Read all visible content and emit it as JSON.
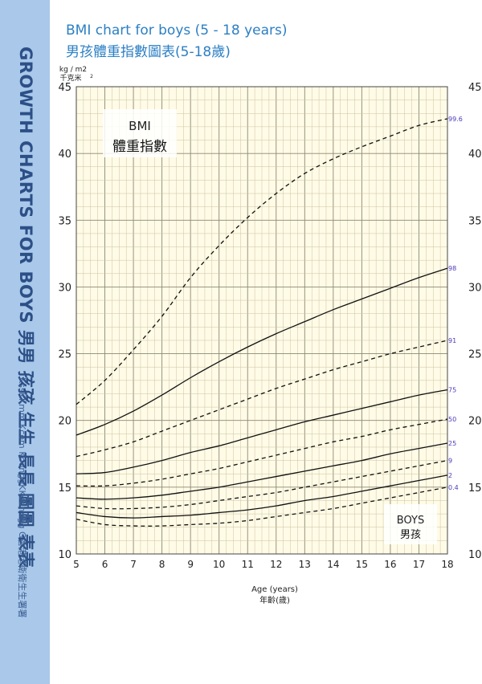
{
  "sidebar": {
    "title": "GROWTH CHARTS FOR BOYS 男男 孩孩 生生 長長 圖圖 表表",
    "subtitle": "KssKKmm.Kcom KoonggKKoonngg G香港港衛衛生生署署"
  },
  "header": {
    "title_en": "BMI chart for boys (5 - 18 years)",
    "title_zh": "男孩體重指數圖表(5-18歲)"
  },
  "chart_data": {
    "type": "line",
    "title": "BMI chart for boys (5 - 18 years)",
    "ylabel_unit": "kg / m2",
    "ylabel_unit_zh": "千克米",
    "ylabel_unit_sup": "2",
    "inner_label": "BMI",
    "inner_label_zh": "體重指數",
    "sex_label": "BOYS",
    "sex_label_zh": "男孩",
    "xlabel": "Age (years)",
    "xlabel_zh": "年齡(歲)",
    "xlim": [
      5,
      18
    ],
    "ylim": [
      10,
      45
    ],
    "x_ticks": [
      5,
      6,
      7,
      8,
      9,
      10,
      11,
      12,
      13,
      14,
      15,
      16,
      17,
      18
    ],
    "y_ticks": [
      10,
      15,
      20,
      25,
      30,
      35,
      40,
      45
    ],
    "grid": true,
    "colors": {
      "grid_bg": "#fffbe6",
      "grid_line": "#c9c3a4",
      "grid_major": "#8c8873",
      "curve": "#111111",
      "percentile_label": "#4a3ab8",
      "title": "#2b7fc4",
      "sidebar_bg": "#a9c8ea"
    },
    "x": [
      5,
      6,
      7,
      8,
      9,
      10,
      11,
      12,
      13,
      14,
      15,
      16,
      17,
      18
    ],
    "series": [
      {
        "name": "99.6",
        "dashed": true,
        "values": [
          21.2,
          23.0,
          25.3,
          27.8,
          30.7,
          33.1,
          35.2,
          37.0,
          38.5,
          39.6,
          40.5,
          41.3,
          42.1,
          42.6
        ]
      },
      {
        "name": "98",
        "dashed": false,
        "values": [
          18.9,
          19.7,
          20.7,
          21.9,
          23.2,
          24.4,
          25.5,
          26.5,
          27.4,
          28.3,
          29.1,
          29.9,
          30.7,
          31.4
        ]
      },
      {
        "name": "91",
        "dashed": true,
        "values": [
          17.3,
          17.8,
          18.4,
          19.2,
          20.0,
          20.8,
          21.6,
          22.4,
          23.1,
          23.8,
          24.4,
          25.0,
          25.5,
          26.0
        ]
      },
      {
        "name": "75",
        "dashed": false,
        "values": [
          16.0,
          16.1,
          16.5,
          17.0,
          17.6,
          18.1,
          18.7,
          19.3,
          19.9,
          20.4,
          20.9,
          21.4,
          21.9,
          22.3
        ]
      },
      {
        "name": "50",
        "dashed": true,
        "values": [
          15.1,
          15.1,
          15.3,
          15.6,
          16.0,
          16.4,
          16.9,
          17.4,
          17.9,
          18.4,
          18.8,
          19.3,
          19.7,
          20.1
        ]
      },
      {
        "name": "25",
        "dashed": false,
        "values": [
          14.2,
          14.1,
          14.2,
          14.4,
          14.7,
          15.0,
          15.4,
          15.8,
          16.2,
          16.6,
          17.0,
          17.5,
          17.9,
          18.3
        ]
      },
      {
        "name": "9",
        "dashed": true,
        "values": [
          13.6,
          13.4,
          13.4,
          13.5,
          13.7,
          14.0,
          14.3,
          14.6,
          15.0,
          15.4,
          15.8,
          16.2,
          16.6,
          17.0
        ]
      },
      {
        "name": "2",
        "dashed": false,
        "values": [
          13.1,
          12.8,
          12.7,
          12.8,
          12.9,
          13.1,
          13.3,
          13.6,
          14.0,
          14.3,
          14.7,
          15.1,
          15.5,
          15.9
        ]
      },
      {
        "name": "0.4",
        "dashed": true,
        "values": [
          12.6,
          12.2,
          12.1,
          12.1,
          12.2,
          12.3,
          12.5,
          12.8,
          13.1,
          13.4,
          13.8,
          14.2,
          14.6,
          15.0
        ]
      }
    ]
  }
}
